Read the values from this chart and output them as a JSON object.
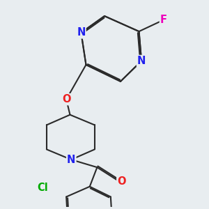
{
  "background_color": "#e8edf0",
  "bond_color": "#2a2a2a",
  "bond_width": 1.5,
  "atom_colors": {
    "N": "#2020ee",
    "O": "#ee2020",
    "F": "#ee00bb",
    "Cl": "#00aa00",
    "C": "#2a2a2a"
  },
  "font_size": 10.5
}
